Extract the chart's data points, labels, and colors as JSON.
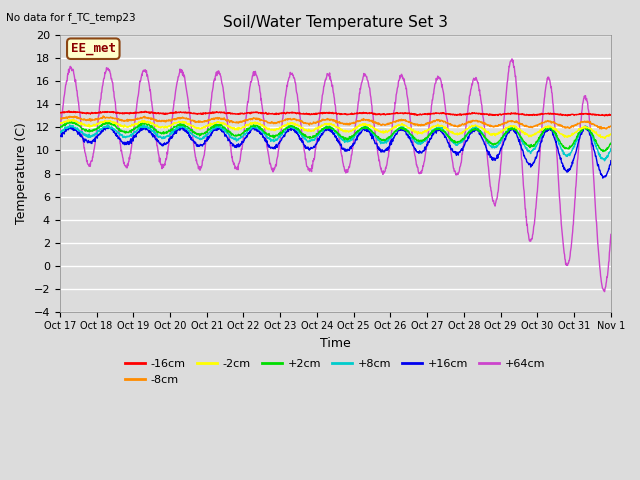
{
  "title": "Soil/Water Temperature Set 3",
  "xlabel": "Time",
  "ylabel": "Temperature (C)",
  "note": "No data for f_TC_temp23",
  "annotation": "EE_met",
  "xlim": [
    0,
    15.0
  ],
  "ylim": [
    -4,
    20
  ],
  "yticks": [
    -4,
    -2,
    0,
    2,
    4,
    6,
    8,
    10,
    12,
    14,
    16,
    18,
    20
  ],
  "xtick_labels": [
    "Oct 17",
    "Oct 18",
    "Oct 19",
    "Oct 20",
    "Oct 21",
    "Oct 22",
    "Oct 23",
    "Oct 24",
    "Oct 25",
    "Oct 26",
    "Oct 27",
    "Oct 28",
    "Oct 29",
    "Oct 30",
    "Oct 31",
    "Nov 1"
  ],
  "bg_color": "#dcdcdc",
  "grid_color": "#ffffff",
  "series_colors": {
    "-16cm": "#ff0000",
    "-8cm": "#ff8c00",
    "-2cm": "#ffff00",
    "+2cm": "#00dd00",
    "+8cm": "#00cccc",
    "+16cm": "#0000ee",
    "+64cm": "#cc44cc"
  }
}
